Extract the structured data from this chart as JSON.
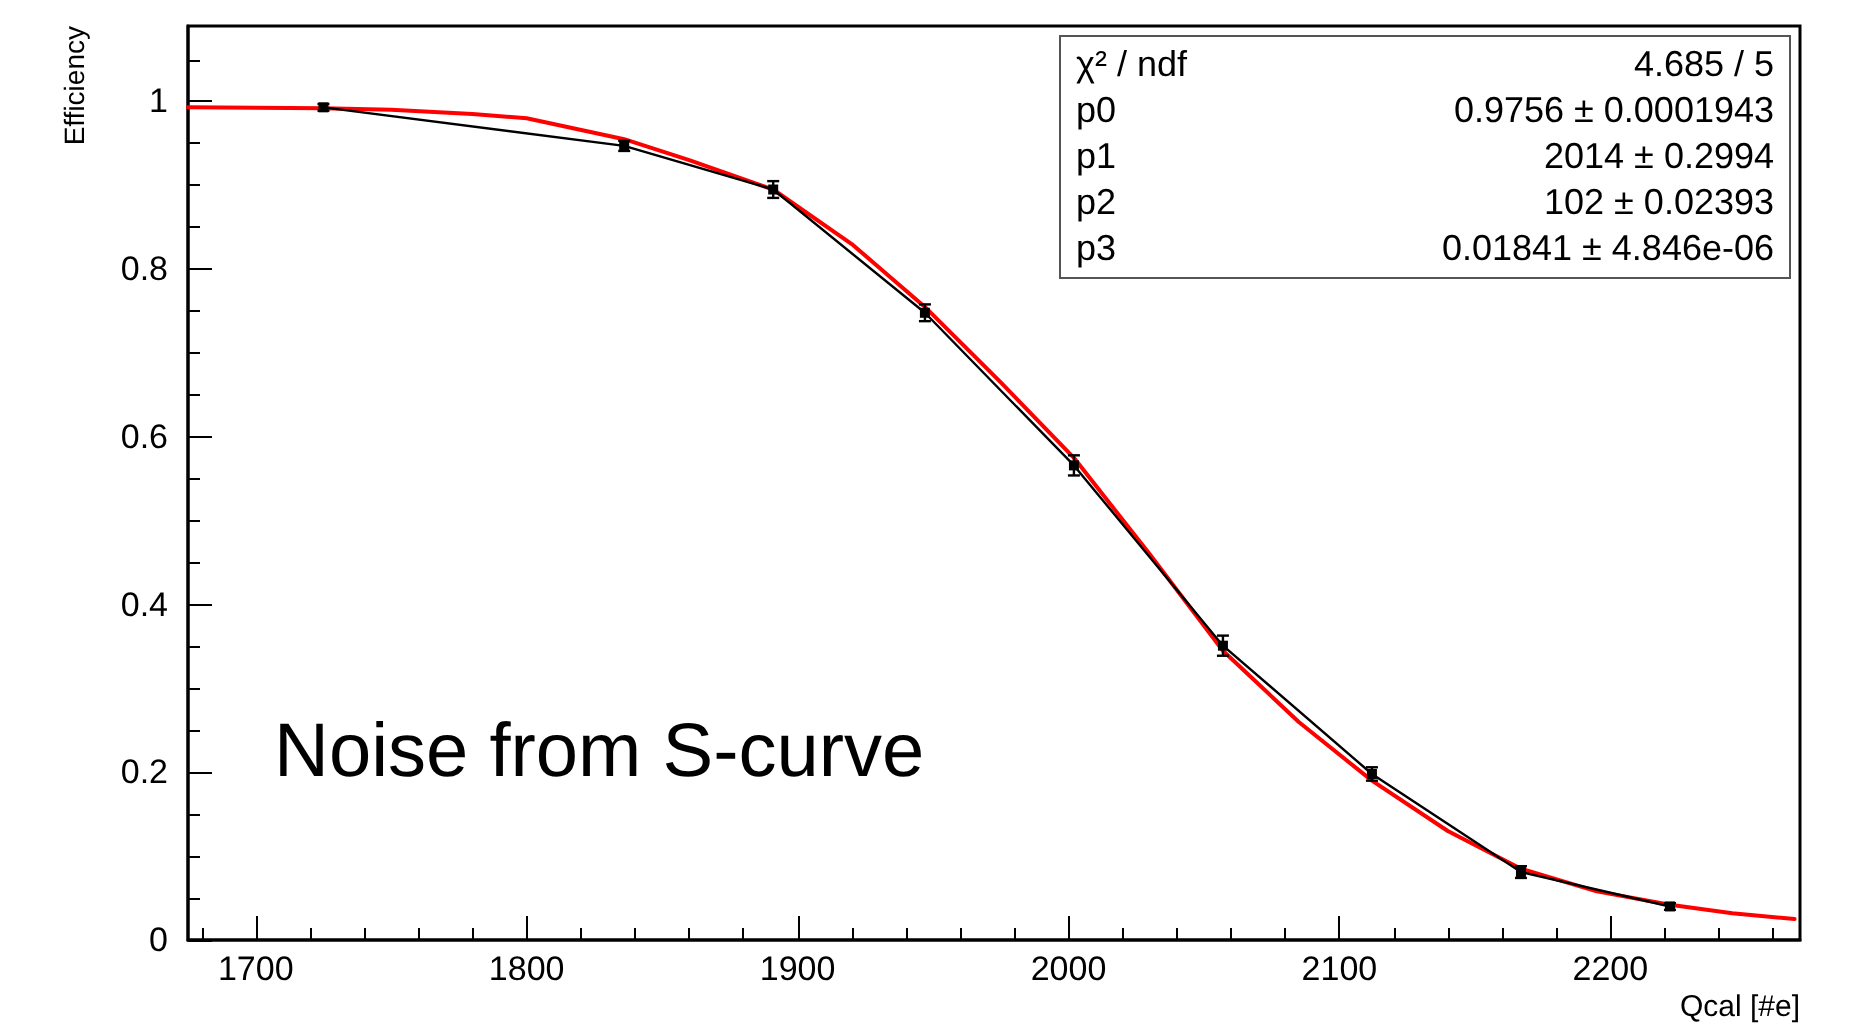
{
  "chart_data": {
    "type": "line",
    "xlabel": "Qcal [#e]",
    "ylabel": "Efficiency",
    "xlim": [
      1675,
      2270
    ],
    "xticks": [
      1700,
      1800,
      1900,
      2000,
      2100,
      2200
    ],
    "ylim": [
      0,
      1.09
    ],
    "yticks": [
      0,
      0.2,
      0.4,
      0.6,
      0.8,
      1
    ],
    "grid": false,
    "annotations": [
      "Noise from S-curve",
      "χ² / ndf",
      "4.685 / 5",
      "p0",
      "0.9756 ± 0.0001943",
      "p1",
      "2014 ± 0.2994",
      "p2",
      "102 ± 0.02393",
      "p3",
      "0.01841 ± 4.846e-06"
    ],
    "series": [
      {
        "color": "#ff0000",
        "line_style": "solid",
        "marker": "none",
        "x": [
          1675,
          1725,
          1750,
          1780,
          1800,
          1836,
          1860,
          1891,
          1920,
          1947,
          1975,
          2002,
          2030,
          2057,
          2085,
          2112,
          2140,
          2167,
          2195,
          2222,
          2245,
          2268
        ],
        "values": [
          0.993,
          0.992,
          0.99,
          0.985,
          0.98,
          0.955,
          0.93,
          0.895,
          0.83,
          0.755,
          0.665,
          0.575,
          0.46,
          0.345,
          0.26,
          0.19,
          0.13,
          0.085,
          0.058,
          0.042,
          0.032,
          0.025
        ]
      },
      {
        "color": "#000000",
        "line_style": "solid",
        "marker": "square",
        "x": [
          1725,
          1836,
          1891,
          1947,
          2002,
          2057,
          2112,
          2167,
          2222
        ],
        "values": [
          0.993,
          0.947,
          0.895,
          0.748,
          0.566,
          0.351,
          0.198,
          0.081,
          0.04
        ],
        "errors": [
          0.004,
          0.006,
          0.01,
          0.01,
          0.012,
          0.012,
          0.008,
          0.007,
          0.004
        ]
      }
    ]
  }
}
